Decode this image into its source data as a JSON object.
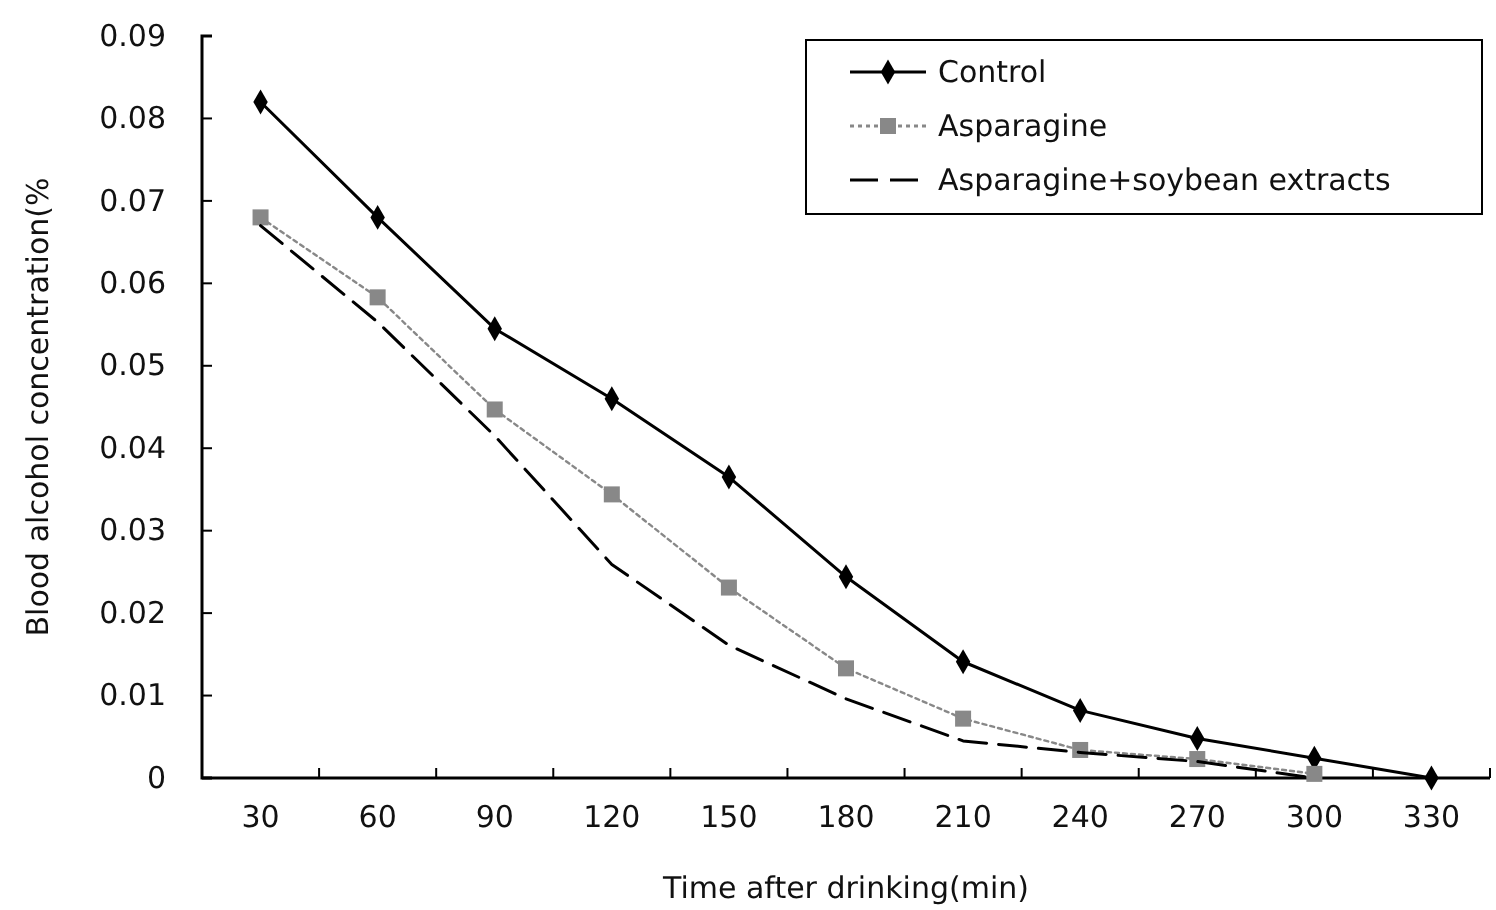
{
  "chart_data": {
    "type": "line",
    "xlabel": "Time after drinking(min)",
    "ylabel": "Blood alcohol concentration(%",
    "categories": [
      "30",
      "60",
      "90",
      "120",
      "150",
      "180",
      "210",
      "240",
      "270",
      "300",
      "330"
    ],
    "ylim": [
      0,
      0.09
    ],
    "yticks": [
      0,
      0.01,
      0.02,
      0.03,
      0.04,
      0.05,
      0.06,
      0.07,
      0.08,
      0.09
    ],
    "legend": "top right",
    "series": [
      {
        "name": "Control",
        "color": "#000000",
        "marker": "diamond",
        "line_style": "solid",
        "values": [
          0.082,
          0.068,
          0.0545,
          0.046,
          0.0365,
          0.0244,
          0.0141,
          0.0082,
          0.0048,
          0.0024,
          0
        ]
      },
      {
        "name": "Asparagine",
        "color": "#888888",
        "marker": "square",
        "line_style": "dotted",
        "values": [
          0.068,
          0.0583,
          0.0447,
          0.0344,
          0.0231,
          0.0133,
          0.0072,
          0.0034,
          0.0023,
          0.0005,
          null
        ]
      },
      {
        "name": "Asparagine+soybean extracts",
        "color": "#000000",
        "marker": "none",
        "line_style": "dashed",
        "values": [
          0.067,
          0.0553,
          0.0415,
          0.0259,
          0.0161,
          0.0096,
          0.0045,
          0.0031,
          0.002,
          0,
          null
        ]
      }
    ]
  }
}
